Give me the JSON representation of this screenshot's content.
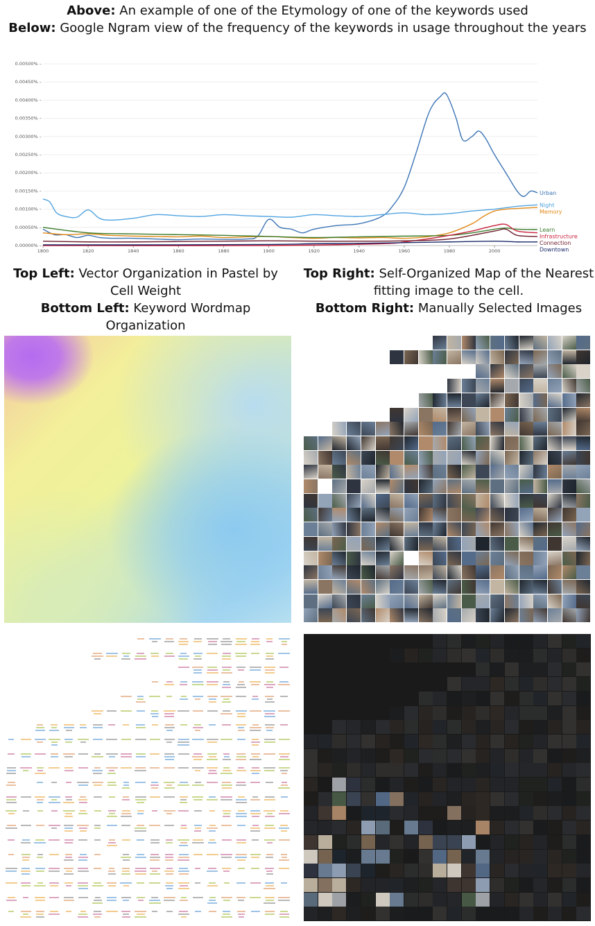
{
  "captions": {
    "above_label": "Above:",
    "above_text": " An example of one of the Etymology of one of the keywords used",
    "below_label": "Below:",
    "below_text": " Google Ngram view of the frequency of the keywords in usage throughout the years",
    "top_left_label": "Top Left:",
    "top_left_text": " Vector Organization in Pastel by Cell Weight",
    "bottom_left_label": "Bottom Left:",
    "bottom_left_text": " Keyword Wordmap Organization",
    "top_right_label": "Top Right:",
    "top_right_text": " Self-Organized Map of the Nearest fitting image to the cell.",
    "bottom_right_label": "Bottom Right:",
    "bottom_right_text": " Manually Selected Images"
  },
  "chart_data": {
    "type": "line",
    "title": "",
    "xlabel": "",
    "ylabel": "",
    "xlim": [
      1800,
      2019
    ],
    "ylim": [
      0,
      0.005
    ],
    "grid": true,
    "x_ticks": [
      "1800",
      "1820",
      "1840",
      "1860",
      "1880",
      "1900",
      "1920",
      "1940",
      "1960",
      "1980",
      "2000"
    ],
    "y_ticks": [
      "0.00000%",
      "0.00050%",
      "0.00100%",
      "0.00150%",
      "0.00200%",
      "0.00250%",
      "0.00300%",
      "0.00350%",
      "0.00400%",
      "0.00450%",
      "0.00500%"
    ],
    "legend_placement": "right-end labels",
    "series": [
      {
        "name": "Urban",
        "color": "#3b74b4",
        "x": [
          1800,
          1805,
          1810,
          1815,
          1820,
          1825,
          1830,
          1840,
          1850,
          1860,
          1870,
          1880,
          1890,
          1895,
          1900,
          1905,
          1910,
          1915,
          1920,
          1930,
          1940,
          1950,
          1955,
          1960,
          1965,
          1970,
          1973,
          1976,
          1978,
          1980,
          1983,
          1986,
          1990,
          1993,
          1996,
          2000,
          2005,
          2010,
          2013,
          2016,
          2019
        ],
        "y": [
          0.00045,
          0.0003,
          0.0003,
          0.00022,
          0.00028,
          0.00022,
          0.0002,
          0.0002,
          0.00018,
          0.00016,
          0.00018,
          0.00017,
          0.00018,
          0.00025,
          0.00072,
          0.0005,
          0.00045,
          0.00035,
          0.00045,
          0.00055,
          0.0006,
          0.0008,
          0.0011,
          0.0016,
          0.0025,
          0.0035,
          0.0039,
          0.0041,
          0.0042,
          0.004,
          0.0035,
          0.0029,
          0.003,
          0.00315,
          0.00295,
          0.0025,
          0.002,
          0.0015,
          0.00135,
          0.0015,
          0.00145
        ]
      },
      {
        "name": "Night",
        "color": "#4fa3e0",
        "x": [
          1800,
          1803,
          1806,
          1810,
          1815,
          1820,
          1825,
          1830,
          1840,
          1850,
          1860,
          1870,
          1880,
          1890,
          1900,
          1910,
          1920,
          1930,
          1940,
          1950,
          1960,
          1970,
          1980,
          1990,
          2000,
          2010,
          2019
        ],
        "y": [
          0.00128,
          0.0012,
          0.0009,
          0.0008,
          0.00078,
          0.00098,
          0.00075,
          0.0007,
          0.00075,
          0.00085,
          0.00082,
          0.0008,
          0.00085,
          0.00082,
          0.0008,
          0.00078,
          0.00085,
          0.00082,
          0.0008,
          0.00085,
          0.0009,
          0.00085,
          0.00088,
          0.00095,
          0.001,
          0.00108,
          0.00112
        ]
      },
      {
        "name": "Memory",
        "color": "#e08a18",
        "x": [
          1800,
          1810,
          1820,
          1830,
          1840,
          1850,
          1860,
          1870,
          1880,
          1890,
          1900,
          1910,
          1920,
          1930,
          1940,
          1950,
          1960,
          1970,
          1980,
          1990,
          1995,
          2000,
          2005,
          2010,
          2019
        ],
        "y": [
          0.00035,
          0.0003,
          0.00032,
          0.00028,
          0.00026,
          0.00025,
          0.00024,
          0.00026,
          0.00022,
          0.00024,
          0.00025,
          0.00022,
          0.0002,
          0.00022,
          0.00021,
          0.00022,
          0.0002,
          0.00024,
          0.00035,
          0.0006,
          0.0008,
          0.00095,
          0.001,
          0.00102,
          0.00105
        ]
      },
      {
        "name": "Learn",
        "color": "#3a7a2a",
        "x": [
          1800,
          1820,
          1840,
          1860,
          1880,
          1900,
          1920,
          1940,
          1960,
          1980,
          1990,
          2000,
          2005,
          2010,
          2019
        ],
        "y": [
          0.0005,
          0.00035,
          0.00032,
          0.0003,
          0.00028,
          0.00025,
          0.00022,
          0.00024,
          0.00026,
          0.00028,
          0.00035,
          0.00045,
          0.00048,
          0.00045,
          0.00044
        ]
      },
      {
        "name": "Infrastructure",
        "color": "#c8203a",
        "x": [
          1800,
          1900,
          1950,
          1960,
          1970,
          1980,
          1990,
          2000,
          2005,
          2010,
          2019
        ],
        "y": [
          0,
          0,
          5e-05,
          0.0001,
          0.00018,
          0.00028,
          0.0004,
          0.00055,
          0.00058,
          0.0004,
          0.00035
        ]
      },
      {
        "name": "Connection",
        "color": "#6a1a2a",
        "x": [
          1800,
          1820,
          1840,
          1860,
          1880,
          1900,
          1920,
          1940,
          1960,
          1980,
          2000,
          2005,
          2010,
          2019
        ],
        "y": [
          0.00012,
          0.0001,
          0.0001,
          0.00011,
          0.00012,
          0.00013,
          0.00012,
          0.00012,
          0.00013,
          0.00018,
          0.0004,
          0.00045,
          0.00028,
          0.00025
        ]
      },
      {
        "name": "Downtown",
        "color": "#1a2a6a",
        "x": [
          1800,
          1850,
          1900,
          1920,
          1940,
          1960,
          1980,
          2000,
          2010,
          2019
        ],
        "y": [
          2e-05,
          2e-05,
          3e-05,
          5e-05,
          6e-05,
          8e-05,
          0.0001,
          0.00012,
          0.0001,
          0.0001
        ]
      }
    ]
  },
  "colors": {
    "grid": "#eeeeee",
    "tick_text": "#555555"
  }
}
